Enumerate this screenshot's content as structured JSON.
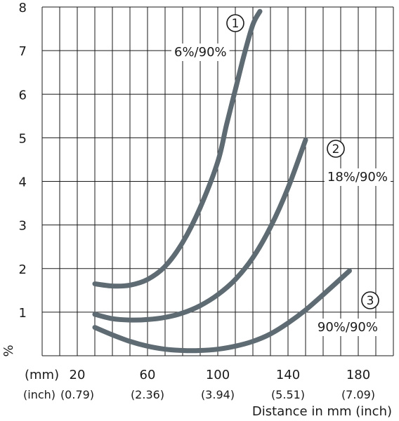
{
  "chart_data": {
    "type": "line",
    "ylabel": "%",
    "xlabel": "Distance in mm (inch)",
    "unit_mm": "(mm)",
    "unit_inch": "(inch)",
    "x_ticks_mm": [
      "20",
      "60",
      "100",
      "140",
      "180"
    ],
    "x_ticks_inch": [
      "(0.79)",
      "(2.36)",
      "(3.94)",
      "(5.51)",
      "(7.09)"
    ],
    "x_tick_values": [
      20,
      60,
      100,
      140,
      180
    ],
    "y_ticks": [
      "1",
      "2",
      "3",
      "4",
      "5",
      "6",
      "7",
      "8"
    ],
    "y_tick_values": [
      1,
      2,
      3,
      4,
      5,
      6,
      7,
      8
    ],
    "xlim": [
      0,
      200
    ],
    "ylim": [
      0,
      8
    ],
    "grid": true,
    "series": [
      {
        "name": "6%/90%",
        "marker": "①",
        "x": [
          30,
          40,
          50,
          60,
          70,
          80,
          90,
          100,
          105,
          110,
          115,
          120,
          124
        ],
        "y": [
          1.65,
          1.6,
          1.62,
          1.75,
          2.05,
          2.6,
          3.4,
          4.45,
          5.3,
          6.1,
          6.9,
          7.6,
          7.9
        ]
      },
      {
        "name": "18%/90%",
        "marker": "②",
        "x": [
          30,
          40,
          50,
          60,
          70,
          80,
          90,
          100,
          110,
          120,
          130,
          140,
          150
        ],
        "y": [
          0.95,
          0.85,
          0.82,
          0.83,
          0.88,
          0.98,
          1.15,
          1.4,
          1.75,
          2.25,
          2.95,
          3.85,
          4.95
        ]
      },
      {
        "name": "90%/90%",
        "marker": "③",
        "x": [
          30,
          40,
          50,
          60,
          70,
          80,
          90,
          100,
          110,
          120,
          130,
          140,
          150,
          160,
          175
        ],
        "y": [
          0.65,
          0.48,
          0.33,
          0.22,
          0.15,
          0.12,
          0.12,
          0.15,
          0.22,
          0.33,
          0.5,
          0.75,
          1.05,
          1.4,
          1.95
        ]
      }
    ]
  }
}
